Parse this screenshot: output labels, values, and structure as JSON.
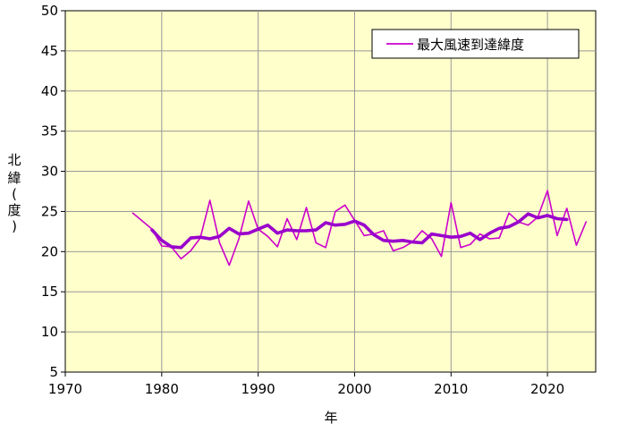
{
  "chart_data": {
    "type": "line",
    "title": "",
    "xlabel": "年",
    "ylabel_chars": [
      "北",
      "緯",
      "(",
      "度",
      ")"
    ],
    "xlim": [
      1970,
      2025
    ],
    "ylim": [
      5,
      50
    ],
    "xticks": [
      1970,
      1980,
      1990,
      2000,
      2010,
      2020
    ],
    "yticks": [
      5,
      10,
      15,
      20,
      25,
      30,
      35,
      40,
      45,
      50
    ],
    "grid": true,
    "legend_position": "top-right",
    "colors": {
      "plot_bg": "#ffffcc",
      "series": "#cc00cc",
      "smooth": "#9900cc",
      "grid": "#999999"
    },
    "series": [
      {
        "name": "最大風速到達緯度",
        "x": [
          1977,
          1978,
          1979,
          1980,
          1981,
          1982,
          1983,
          1984,
          1985,
          1986,
          1987,
          1988,
          1989,
          1990,
          1991,
          1992,
          1993,
          1994,
          1995,
          1996,
          1997,
          1998,
          1999,
          2000,
          2001,
          2002,
          2003,
          2004,
          2005,
          2006,
          2007,
          2008,
          2009,
          2010,
          2011,
          2012,
          2013,
          2014,
          2015,
          2016,
          2017,
          2018,
          2019,
          2020,
          2021,
          2022,
          2023,
          2024
        ],
        "y": [
          24.8,
          23.8,
          22.8,
          20.7,
          20.6,
          19.1,
          20.1,
          21.7,
          26.4,
          21.1,
          18.3,
          21.6,
          26.3,
          22.8,
          21.9,
          20.6,
          24.1,
          21.5,
          25.5,
          21.1,
          20.5,
          25.0,
          25.8,
          23.9,
          22.0,
          22.2,
          22.6,
          20.1,
          20.5,
          21.2,
          22.6,
          21.6,
          19.4,
          26.1,
          20.5,
          20.9,
          22.2,
          21.6,
          21.7,
          24.8,
          23.7,
          23.3,
          24.3,
          27.6,
          22.0,
          25.4,
          20.8,
          23.7
        ]
      },
      {
        "x": [
          1979,
          1980,
          1981,
          1982,
          1983,
          1984,
          1985,
          1986,
          1987,
          1988,
          1989,
          1990,
          1991,
          1992,
          1993,
          1994,
          1995,
          1996,
          1997,
          1998,
          1999,
          2000,
          2001,
          2002,
          2003,
          2004,
          2005,
          2006,
          2007,
          2008,
          2009,
          2010,
          2011,
          2012,
          2013,
          2014,
          2015,
          2016,
          2017,
          2018,
          2019,
          2020,
          2021,
          2022
        ],
        "y": [
          22.7,
          21.4,
          20.6,
          20.5,
          21.7,
          21.8,
          21.6,
          21.9,
          22.9,
          22.2,
          22.3,
          22.8,
          23.3,
          22.3,
          22.7,
          22.6,
          22.6,
          22.7,
          23.6,
          23.3,
          23.4,
          23.8,
          23.3,
          22.1,
          21.4,
          21.3,
          21.4,
          21.2,
          21.1,
          22.2,
          22.0,
          21.8,
          21.9,
          22.3,
          21.5,
          22.3,
          22.9,
          23.1,
          23.7,
          24.7,
          24.2,
          24.5,
          24.1,
          24.0
        ]
      }
    ]
  }
}
